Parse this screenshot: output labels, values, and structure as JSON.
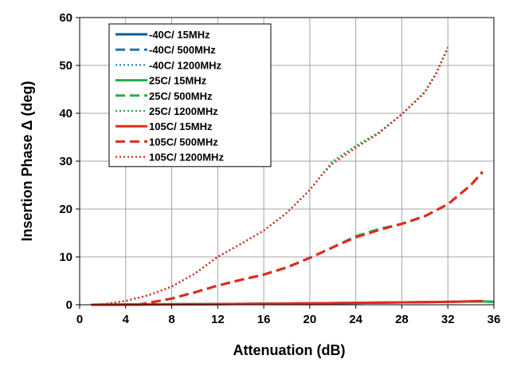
{
  "chart_data": {
    "type": "line",
    "title": "",
    "xlabel": "Attenuation (dB)",
    "ylabel": "Insertion Phase Δ (deg)",
    "xlim": [
      0,
      36
    ],
    "ylim": [
      0,
      60
    ],
    "xticks": [
      0,
      4,
      8,
      12,
      16,
      20,
      24,
      28,
      32,
      36
    ],
    "yticks": [
      0,
      10,
      20,
      30,
      40,
      50,
      60
    ],
    "grid": true,
    "legend_position": "top-left",
    "series": [
      {
        "name": "-40C/ 15MHz",
        "color": "#0b5d97",
        "dash": "solid",
        "x": [
          1,
          4,
          8,
          12,
          16,
          20,
          24,
          28,
          32,
          35,
          36
        ],
        "y": [
          0,
          0.05,
          0.1,
          0.15,
          0.2,
          0.3,
          0.4,
          0.5,
          0.6,
          0.7,
          0.6
        ]
      },
      {
        "name": "-40C/ 500MHz",
        "color": "#1f77b4",
        "dash": "dashed",
        "x": [
          5,
          6,
          8,
          10,
          12,
          14,
          16,
          18,
          20,
          22,
          24,
          26,
          28,
          30,
          32,
          34,
          35
        ],
        "y": [
          0,
          0.4,
          1.3,
          2.6,
          4.0,
          5.2,
          6.3,
          7.8,
          9.8,
          12.0,
          14.3,
          15.8,
          16.9,
          18.5,
          21.0,
          25.0,
          27.6
        ]
      },
      {
        "name": "-40C/ 1200MHz",
        "color": "#1f88c8",
        "dash": "dotted",
        "x": [
          2,
          4,
          6,
          8,
          10,
          12,
          14,
          16,
          18,
          20,
          21,
          22,
          24,
          26,
          28,
          30,
          31,
          32
        ],
        "y": [
          0.1,
          0.8,
          2.0,
          3.8,
          6.5,
          10.0,
          12.7,
          15.5,
          19.2,
          24.0,
          27.0,
          30.0,
          33.2,
          36.0,
          39.8,
          44.5,
          48.5,
          53.8
        ]
      },
      {
        "name": "25C/ 15MHz",
        "color": "#22b04a",
        "dash": "solid",
        "x": [
          1,
          4,
          8,
          12,
          16,
          20,
          24,
          28,
          32,
          35,
          36
        ],
        "y": [
          0,
          0.05,
          0.1,
          0.15,
          0.2,
          0.3,
          0.4,
          0.5,
          0.6,
          0.7,
          0.6
        ]
      },
      {
        "name": "25C/ 500MHz",
        "color": "#22b04a",
        "dash": "dashed",
        "x": [
          5,
          6,
          8,
          10,
          12,
          14,
          16,
          18,
          20,
          22,
          24,
          26,
          28,
          30,
          32,
          34,
          35
        ],
        "y": [
          0,
          0.4,
          1.3,
          2.6,
          4.0,
          5.2,
          6.3,
          7.8,
          9.8,
          12.0,
          14.3,
          15.8,
          16.9,
          18.5,
          21.0,
          25.0,
          27.6
        ]
      },
      {
        "name": "25C/ 1200MHz",
        "color": "#22b04a",
        "dash": "dotted",
        "x": [
          2,
          4,
          6,
          8,
          10,
          12,
          14,
          16,
          18,
          20,
          21,
          22,
          24,
          26,
          28,
          30,
          31,
          32
        ],
        "y": [
          0.1,
          0.8,
          2.0,
          3.8,
          6.5,
          10.0,
          12.7,
          15.5,
          19.2,
          24.0,
          27.0,
          30.0,
          33.2,
          36.0,
          39.8,
          44.5,
          48.5,
          53.8
        ]
      },
      {
        "name": "105C/ 15MHz",
        "color": "#e8281e",
        "dash": "solid",
        "x": [
          1,
          4,
          8,
          12,
          16,
          20,
          24,
          28,
          32,
          35
        ],
        "y": [
          0,
          0.05,
          0.1,
          0.15,
          0.2,
          0.3,
          0.4,
          0.5,
          0.6,
          0.8
        ]
      },
      {
        "name": "105C/ 500MHz",
        "color": "#e8281e",
        "dash": "dashed",
        "x": [
          5,
          6,
          8,
          10,
          12,
          14,
          16,
          18,
          20,
          22,
          24,
          26,
          28,
          30,
          32,
          34,
          35
        ],
        "y": [
          0,
          0.4,
          1.3,
          2.6,
          4.0,
          5.2,
          6.3,
          7.8,
          9.8,
          12.0,
          14.1,
          15.6,
          16.9,
          18.5,
          21.0,
          25.0,
          27.8
        ]
      },
      {
        "name": "105C/ 1200MHz",
        "color": "#e8281e",
        "dash": "dotted",
        "x": [
          2,
          4,
          6,
          8,
          10,
          12,
          14,
          16,
          18,
          20,
          21,
          22,
          24,
          26,
          28,
          30,
          31,
          32
        ],
        "y": [
          0.1,
          0.8,
          2.0,
          3.8,
          6.5,
          10.0,
          12.7,
          15.5,
          19.2,
          24.0,
          27.0,
          29.5,
          32.8,
          35.8,
          39.8,
          44.3,
          48.3,
          53.6
        ]
      }
    ]
  }
}
